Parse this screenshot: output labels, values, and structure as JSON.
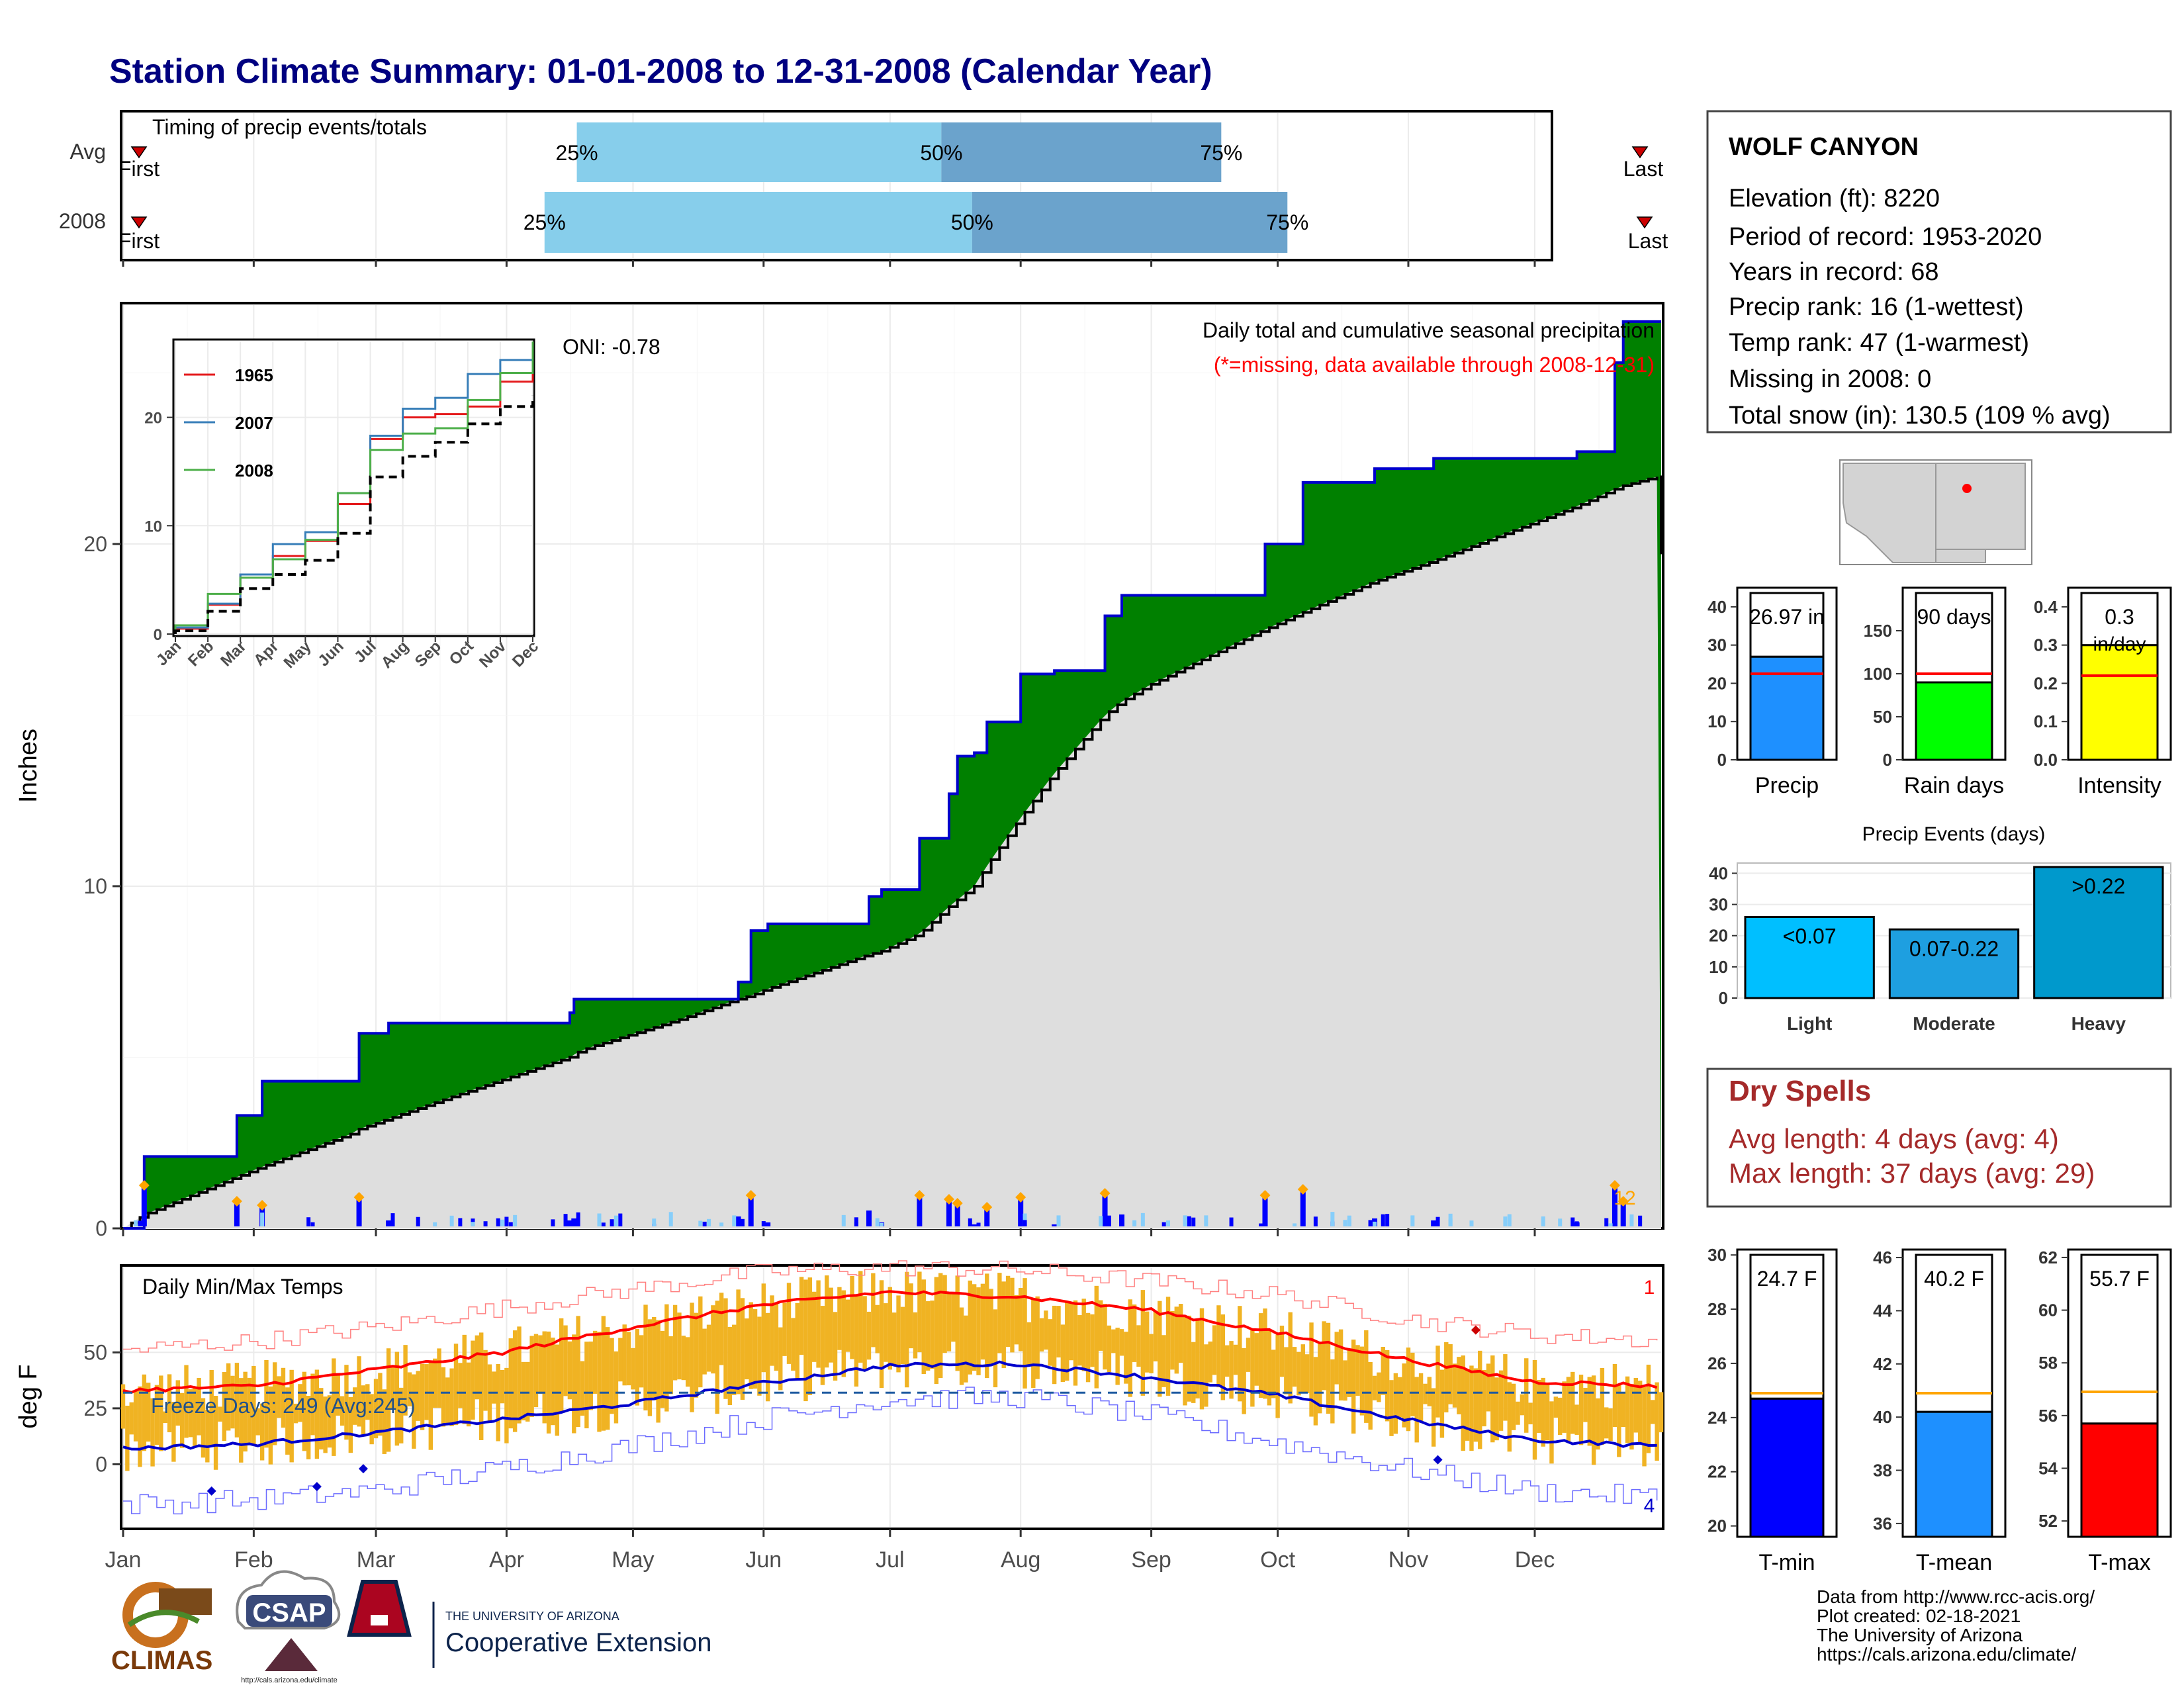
{
  "title": "Station Climate Summary: 01-01-2008 to 12-31-2008 (Calendar Year)",
  "colors": {
    "title": "#000080",
    "precip_fill": "#008000",
    "normal_fill": "#dedede",
    "precip_line": "#0000cc",
    "quartile_light": "#87ceeb",
    "quartile_dark": "#6ba3cc",
    "avg_line": "#ff0000",
    "temp_bar": "#f0b323",
    "tmax_line": "#ff0000",
    "tmin_line": "#0000cc",
    "dry_spell_text": "#a52a2a"
  },
  "months": [
    "Jan",
    "Feb",
    "Mar",
    "Apr",
    "May",
    "Jun",
    "Jul",
    "Aug",
    "Sep",
    "Oct",
    "Nov",
    "Dec"
  ],
  "timing": {
    "label": "Timing of precip events/totals",
    "rows": [
      {
        "name": "Avg",
        "first": "First",
        "last": "Last",
        "p25": "25%",
        "p50": "50%",
        "p75": "75%",
        "q25": 0.295,
        "q50": 0.532,
        "q75": 0.714
      },
      {
        "name": "2008",
        "first": "First",
        "last": "Last",
        "p25": "25%",
        "p50": "50%",
        "p75": "75%",
        "q25": 0.274,
        "q50": 0.552,
        "q75": 0.757
      }
    ]
  },
  "main_chart": {
    "ylabel": "Inches",
    "yticks": [
      "0",
      "10",
      "20"
    ],
    "oni": "ONI: -0.78",
    "subtitle": "Daily total and cumulative seasonal precipitation",
    "missing_note": "(*=missing, data available through 2008-12-31)",
    "count_label": "12"
  },
  "chart_data": [
    {
      "type": "area",
      "title": "Daily total and cumulative seasonal precipitation",
      "ylabel": "Inches",
      "ylim": [
        0,
        27
      ],
      "x": [
        1,
        6,
        18,
        28,
        34,
        56,
        57,
        64,
        78,
        107,
        108,
        112,
        133,
        147,
        150,
        154,
        178,
        181,
        190,
        197,
        199,
        203,
        206,
        214,
        222,
        234,
        238,
        245,
        272,
        281,
        298,
        312,
        346,
        355,
        357,
        366
      ],
      "series": [
        {
          "name": "2008",
          "values": [
            0.0,
            2.1,
            2.1,
            3.3,
            4.3,
            4.3,
            5.7,
            6.0,
            6.0,
            6.3,
            6.7,
            6.7,
            6.7,
            7.2,
            8.7,
            8.9,
            9.7,
            9.9,
            11.4,
            12.7,
            13.8,
            13.9,
            14.8,
            16.2,
            16.3,
            17.9,
            18.5,
            18.5,
            20.0,
            21.8,
            22.2,
            22.5,
            22.7,
            25.3,
            26.5,
            26.5
          ]
        },
        {
          "name": "Average",
          "values": [
            0.0,
            0.4,
            1.0,
            1.5,
            1.8,
            2.8,
            2.9,
            3.2,
            3.8,
            5.0,
            5.1,
            5.3,
            6.1,
            6.7,
            6.8,
            7.0,
            8.0,
            8.1,
            8.6,
            9.4,
            9.6,
            10.0,
            10.6,
            12.0,
            13.3,
            15.0,
            15.4,
            15.9,
            17.5,
            18.0,
            18.9,
            19.5,
            21.1,
            21.6,
            21.7,
            22.0
          ]
        }
      ]
    },
    {
      "type": "line",
      "title": "",
      "x_labels": [
        "Jan",
        "Feb",
        "Mar",
        "Apr",
        "May",
        "Jun",
        "Jul",
        "Aug",
        "Sep",
        "Oct",
        "Nov",
        "Dec"
      ],
      "yticks": [
        "0",
        "10",
        "20"
      ],
      "ylim": [
        0,
        27
      ],
      "series": [
        {
          "name": "1965",
          "color": "#e41a1c",
          "values": [
            0.5,
            2.7,
            5.5,
            7.2,
            8.6,
            12.0,
            18.0,
            20.0,
            20.3,
            21.0,
            23.3,
            26.6
          ]
        },
        {
          "name": "2007",
          "color": "#377eb8",
          "values": [
            0.6,
            2.8,
            5.5,
            8.3,
            9.4,
            13.0,
            18.3,
            20.8,
            21.8,
            24.0,
            25.3,
            27.0
          ]
        },
        {
          "name": "2008",
          "color": "#4daf4a",
          "values": [
            0.8,
            3.7,
            5.2,
            6.9,
            8.7,
            13.0,
            17.0,
            18.5,
            19.0,
            21.6,
            24.1,
            27.0
          ]
        },
        {
          "name": "Average",
          "color": "#000000",
          "values": [
            0.3,
            2.1,
            4.2,
            5.5,
            6.8,
            9.3,
            14.5,
            16.4,
            17.7,
            19.4,
            21.0,
            22.0
          ]
        }
      ]
    },
    {
      "type": "bar",
      "title": "",
      "categories": [
        "Precip",
        "Rain days",
        "Intensity"
      ],
      "values": [
        26.97,
        90,
        0.3
      ],
      "averages": [
        22.5,
        100,
        0.22
      ],
      "labels": [
        "26.97 in",
        "90 days",
        "0.3"
      ],
      "units": [
        "",
        "",
        "in/day"
      ],
      "ylims": [
        [
          0,
          45
        ],
        [
          0,
          200
        ],
        [
          0,
          0.45
        ]
      ],
      "yticks": [
        [
          "0",
          "10",
          "20",
          "30",
          "40"
        ],
        [
          "0",
          "50",
          "100",
          "150"
        ],
        [
          "0.0",
          "0.1",
          "0.2",
          "0.3",
          "0.4"
        ]
      ]
    },
    {
      "type": "bar",
      "title": "Precip Events (days)",
      "categories": [
        "Light",
        "Moderate",
        "Heavy"
      ],
      "values": [
        26,
        22,
        42
      ],
      "labels": [
        "<0.07",
        "0.07-0.22",
        ">0.22"
      ],
      "ylim": [
        0,
        42
      ],
      "yticks": [
        "0",
        "10",
        "20",
        "30",
        "40"
      ]
    },
    {
      "type": "line",
      "title": "Daily Min/Max Temps",
      "ylabel": "deg F",
      "ylim": [
        -28,
        88
      ],
      "x": [
        1,
        32,
        60,
        91,
        121,
        152,
        182,
        213,
        244,
        274,
        305,
        335,
        366
      ],
      "series": [
        {
          "name": "Avg Tmax",
          "values": [
            33,
            35,
            42,
            50,
            61,
            71,
            77,
            75,
            69,
            59,
            47,
            37,
            35
          ]
        },
        {
          "name": "Avg Tmin",
          "values": [
            7,
            9,
            14,
            20,
            27,
            36,
            44,
            45,
            39,
            31,
            20,
            11,
            8
          ]
        },
        {
          "name": "Record high",
          "values": [
            51,
            55,
            61,
            70,
            78,
            86,
            88,
            87,
            82,
            76,
            65,
            58,
            55
          ]
        },
        {
          "name": "Record low",
          "values": [
            -18,
            -16,
            -12,
            -2,
            8,
            20,
            29,
            30,
            22,
            10,
            -2,
            -12,
            -15
          ]
        }
      ],
      "freeze_line": 32,
      "freeze_label": "Freeze Days: 249 (Avg:245)",
      "yticks": [
        "0",
        "25",
        "50"
      ],
      "record_high_count": "1",
      "record_low_count": "4"
    },
    {
      "type": "bar",
      "title": "",
      "categories": [
        "T-min",
        "T-mean",
        "T-max"
      ],
      "values": [
        24.7,
        40.2,
        55.7
      ],
      "averages": [
        24.9,
        40.9,
        56.9
      ],
      "labels": [
        "24.7 F",
        "40.2 F",
        "55.7 F"
      ],
      "colors": [
        "#0000ff",
        "#1e90ff",
        "#ff0000"
      ],
      "ylims": [
        [
          19.6,
          30.2
        ],
        [
          35.5,
          46.3
        ],
        [
          51.4,
          62.3
        ]
      ],
      "yticks": [
        [
          "20",
          "22",
          "24",
          "26",
          "28",
          "30"
        ],
        [
          "36",
          "38",
          "40",
          "42",
          "44",
          "46"
        ],
        [
          "52",
          "54",
          "56",
          "58",
          "60",
          "62"
        ]
      ]
    }
  ],
  "station": {
    "name": "WOLF CANYON",
    "lines": [
      "Elevation (ft): 8220",
      "Period of record: 1953-2020",
      "Years in record: 68",
      "Precip rank: 16 (1-wettest)",
      "Temp rank: 47 (1-warmest)",
      "Missing in 2008: 0",
      "Total snow (in): 130.5 (109 % avg)"
    ]
  },
  "dry_spells": {
    "title": "Dry Spells",
    "avg": "Avg length: 4 days (avg: 4)",
    "max": "Max length: 37 days (avg: 29)"
  },
  "footer": {
    "logos": [
      "CLIMAS",
      "CSAP"
    ],
    "csap_url": "http://cals.arizona.edu/climate",
    "univ_small": "THE UNIVERSITY OF ARIZONA",
    "univ_big": "Cooperative Extension",
    "credits": [
      "Data from http://www.rcc-acis.org/",
      "Plot created: 02-18-2021",
      "The University of Arizona",
      "https://cals.arizona.edu/climate/"
    ]
  }
}
